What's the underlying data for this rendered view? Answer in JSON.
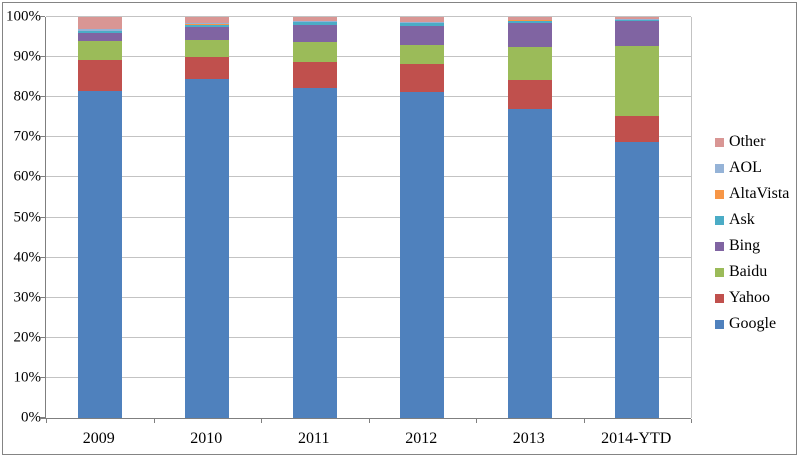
{
  "chart_data": {
    "type": "bar",
    "subtype": "stacked-100-percent",
    "title": "",
    "xlabel": "",
    "ylabel": "",
    "categories": [
      "2009",
      "2010",
      "2011",
      "2012",
      "2013",
      "2014-YTD"
    ],
    "series": [
      {
        "name": "Google",
        "color": "#4F81BD",
        "values": [
          81.5,
          84.6,
          82.2,
          81.3,
          77.1,
          68.9
        ]
      },
      {
        "name": "Yahoo",
        "color": "#C0504D",
        "values": [
          7.8,
          5.5,
          6.6,
          7.0,
          7.3,
          6.5
        ]
      },
      {
        "name": "Baidu",
        "color": "#9BBB59",
        "values": [
          4.6,
          4.2,
          4.9,
          4.8,
          8.2,
          17.4
        ]
      },
      {
        "name": "Bing",
        "color": "#8064A2",
        "values": [
          2.1,
          3.2,
          4.3,
          4.6,
          5.8,
          6.2
        ]
      },
      {
        "name": "Ask",
        "color": "#4BACC6",
        "values": [
          0.5,
          0.6,
          0.7,
          0.8,
          0.7,
          0.3
        ]
      },
      {
        "name": "AltaVista",
        "color": "#F79646",
        "values": [
          0.1,
          0.1,
          0.1,
          0.1,
          0.1,
          0.05
        ]
      },
      {
        "name": "AOL",
        "color": "#95B3D7",
        "values": [
          0.4,
          0.3,
          0.1,
          0.2,
          0.1,
          0.15
        ]
      },
      {
        "name": "Other",
        "color": "#D99694",
        "values": [
          3.0,
          1.5,
          1.1,
          1.2,
          0.7,
          0.5
        ]
      }
    ],
    "y_axis": {
      "min": 0,
      "max": 100,
      "step": 10,
      "tick_labels": [
        "0%",
        "10%",
        "20%",
        "30%",
        "40%",
        "50%",
        "60%",
        "70%",
        "80%",
        "90%",
        "100%"
      ]
    },
    "legend": {
      "position": "right",
      "entries": [
        "Other",
        "AOL",
        "AltaVista",
        "Ask",
        "Bing",
        "Baidu",
        "Yahoo",
        "Google"
      ]
    },
    "gridlines": true,
    "colors": {
      "grid": "#C3C3C3",
      "axis": "#7F7F7F",
      "frame": "#848484",
      "text": "#000000",
      "background": "#FFFFFF"
    }
  }
}
